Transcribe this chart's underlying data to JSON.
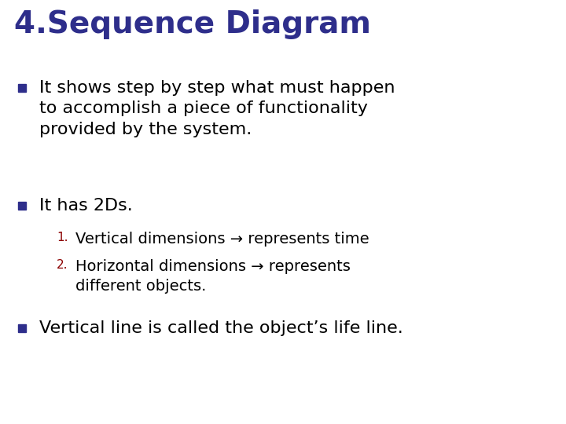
{
  "title": "4.Sequence Diagram",
  "title_color": "#2e2e8b",
  "title_fontsize": 28,
  "title_fontweight": "bold",
  "background_color": "#ffffff",
  "bullet_color": "#2e2e8b",
  "text_color": "#000000",
  "number_color": "#8b0000",
  "bullet1": "It shows step by step what must happen\nto accomplish a piece of functionality\nprovided by the system.",
  "bullet2": "It has 2Ds.",
  "sub1": "Vertical dimensions → represents time",
  "sub2": "Horizontal dimensions → represents\ndifferent objects.",
  "bullet3": "Vertical line is called the object’s life line.",
  "main_fontsize": 16,
  "sub_fontsize": 14,
  "num_fontsize": 11
}
